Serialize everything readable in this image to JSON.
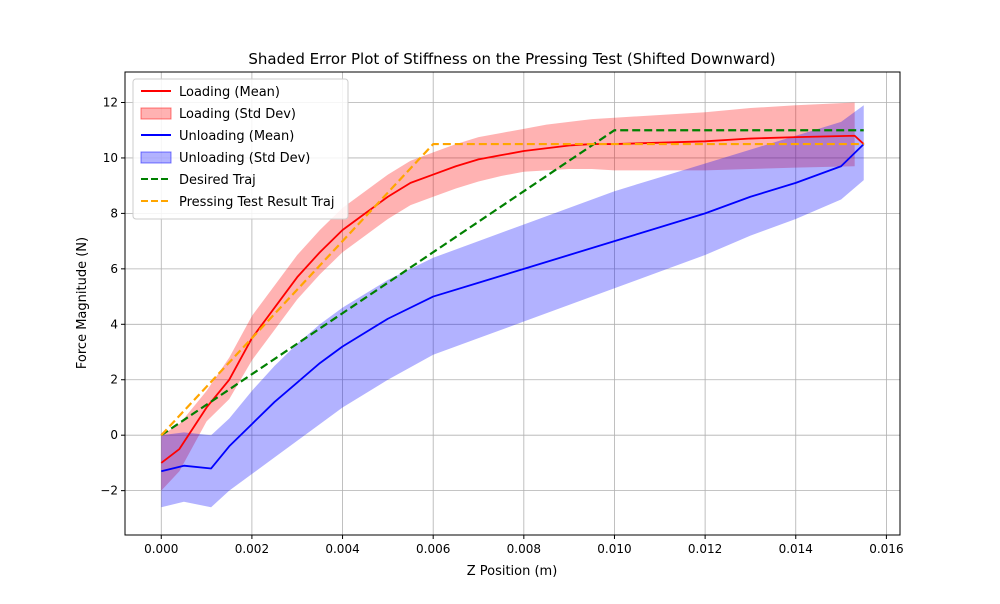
{
  "chart_data": {
    "type": "line",
    "title": "Shaded Error Plot of Stiffness on the Pressing Test (Shifted Downward)",
    "xlabel": "Z Position (m)",
    "ylabel": "Force Magnitude (N)",
    "xlim": [
      -0.0008,
      0.0163
    ],
    "ylim": [
      -3.6,
      13.1
    ],
    "xticks": [
      0.0,
      0.002,
      0.004,
      0.006,
      0.008,
      0.01,
      0.012,
      0.014,
      0.016
    ],
    "xtick_labels": [
      "0.000",
      "0.002",
      "0.004",
      "0.006",
      "0.008",
      "0.010",
      "0.012",
      "0.014",
      "0.016"
    ],
    "yticks": [
      -2,
      0,
      2,
      4,
      6,
      8,
      10,
      12
    ],
    "ytick_labels": [
      "−2",
      "0",
      "2",
      "4",
      "6",
      "8",
      "10",
      "12"
    ],
    "grid": true,
    "legend_position": "upper-left",
    "series": [
      {
        "name": "Loading (Mean)",
        "kind": "line",
        "color": "#ff0000",
        "x": [
          0.0,
          0.0004,
          0.001,
          0.0015,
          0.002,
          0.0025,
          0.003,
          0.0035,
          0.004,
          0.0045,
          0.005,
          0.0055,
          0.006,
          0.0065,
          0.007,
          0.0075,
          0.008,
          0.0085,
          0.009,
          0.0095,
          0.01,
          0.011,
          0.012,
          0.013,
          0.014,
          0.0153,
          0.0155
        ],
        "y": [
          -1.0,
          -0.5,
          1.0,
          2.0,
          3.5,
          4.6,
          5.7,
          6.6,
          7.4,
          8.0,
          8.6,
          9.1,
          9.4,
          9.7,
          9.95,
          10.1,
          10.25,
          10.35,
          10.45,
          10.5,
          10.5,
          10.55,
          10.6,
          10.7,
          10.75,
          10.8,
          10.5
        ]
      },
      {
        "name": "Loading (Std Dev)",
        "kind": "band",
        "color": "#ff0000",
        "x": [
          0.0,
          0.0004,
          0.001,
          0.0015,
          0.002,
          0.0025,
          0.003,
          0.0035,
          0.004,
          0.0045,
          0.005,
          0.0055,
          0.006,
          0.0065,
          0.007,
          0.0075,
          0.008,
          0.0085,
          0.009,
          0.0095,
          0.01,
          0.011,
          0.012,
          0.013,
          0.014,
          0.0153
        ],
        "lower": [
          -2.0,
          -1.3,
          0.5,
          1.3,
          2.7,
          3.8,
          4.9,
          5.8,
          6.6,
          7.2,
          7.8,
          8.3,
          8.6,
          8.9,
          9.15,
          9.35,
          9.5,
          9.55,
          9.6,
          9.6,
          9.55,
          9.55,
          9.55,
          9.6,
          9.65,
          9.7
        ],
        "upper": [
          0.0,
          0.4,
          1.6,
          2.8,
          4.3,
          5.4,
          6.5,
          7.4,
          8.2,
          8.8,
          9.4,
          9.9,
          10.2,
          10.5,
          10.75,
          10.9,
          11.05,
          11.2,
          11.3,
          11.4,
          11.45,
          11.55,
          11.65,
          11.8,
          11.9,
          12.0
        ]
      },
      {
        "name": "Unloading (Mean)",
        "kind": "line",
        "color": "#0000ff",
        "x": [
          0.0,
          0.0005,
          0.0011,
          0.0015,
          0.002,
          0.0025,
          0.003,
          0.0035,
          0.004,
          0.005,
          0.006,
          0.007,
          0.008,
          0.009,
          0.01,
          0.011,
          0.012,
          0.013,
          0.014,
          0.015,
          0.0155
        ],
        "y": [
          -1.3,
          -1.1,
          -1.2,
          -0.4,
          0.4,
          1.2,
          1.9,
          2.6,
          3.2,
          4.2,
          5.0,
          5.5,
          6.0,
          6.5,
          7.0,
          7.5,
          8.0,
          8.6,
          9.1,
          9.7,
          10.5
        ]
      },
      {
        "name": "Unloading (Std Dev)",
        "kind": "band",
        "color": "#0000ff",
        "x": [
          0.0,
          0.0005,
          0.0011,
          0.0015,
          0.002,
          0.0025,
          0.003,
          0.0035,
          0.004,
          0.005,
          0.006,
          0.007,
          0.008,
          0.009,
          0.01,
          0.011,
          0.012,
          0.013,
          0.014,
          0.015,
          0.0155
        ],
        "lower": [
          -2.6,
          -2.4,
          -2.6,
          -2.0,
          -1.4,
          -0.8,
          -0.2,
          0.4,
          1.0,
          2.0,
          2.9,
          3.5,
          4.1,
          4.7,
          5.3,
          5.9,
          6.5,
          7.2,
          7.8,
          8.5,
          9.2
        ],
        "upper": [
          0.0,
          0.1,
          0.0,
          0.6,
          1.6,
          2.5,
          3.3,
          4.0,
          4.6,
          5.6,
          6.4,
          7.0,
          7.6,
          8.2,
          8.8,
          9.3,
          9.8,
          10.3,
          10.8,
          11.3,
          11.9
        ]
      },
      {
        "name": "Desired Traj",
        "kind": "dashed",
        "color": "#008000",
        "x": [
          0.0,
          0.01,
          0.0155
        ],
        "y": [
          0.0,
          11.0,
          11.0
        ]
      },
      {
        "name": "Pressing Test Result Traj",
        "kind": "dashed",
        "color": "#ffa500",
        "x": [
          0.0,
          0.006,
          0.0155
        ],
        "y": [
          0.0,
          10.5,
          10.5
        ]
      }
    ]
  }
}
